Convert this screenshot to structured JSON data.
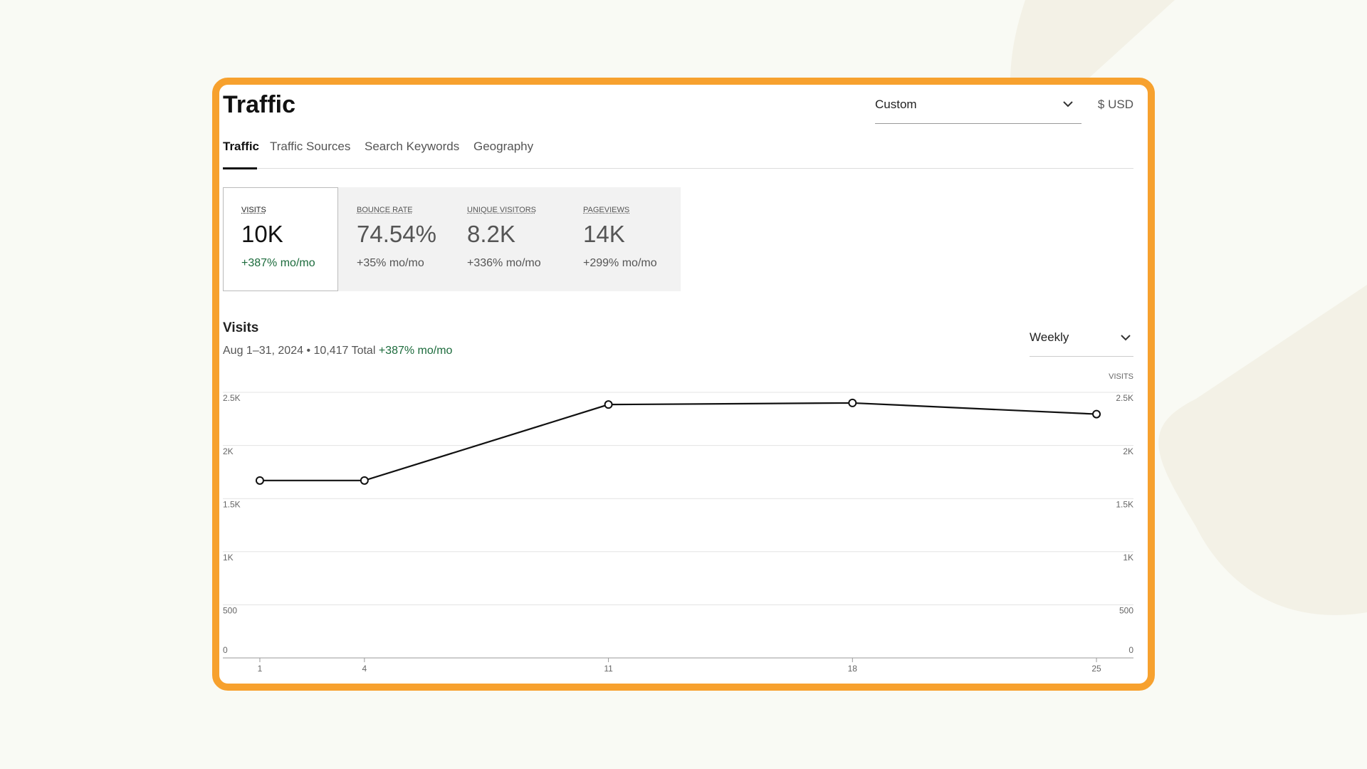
{
  "header": {
    "title": "Traffic",
    "date_range": "Custom",
    "currency": "$ USD"
  },
  "tabs": [
    "Traffic",
    "Traffic Sources",
    "Search Keywords",
    "Geography"
  ],
  "metrics": [
    {
      "label": "VISITS",
      "value": "10K",
      "change": "+387% mo/mo"
    },
    {
      "label": "BOUNCE RATE",
      "value": "74.54%",
      "change": "+35% mo/mo"
    },
    {
      "label": "UNIQUE VISITORS",
      "value": "8.2K",
      "change": "+336% mo/mo"
    },
    {
      "label": "PAGEVIEWS",
      "value": "14K",
      "change": "+299% mo/mo"
    }
  ],
  "chart_data": {
    "type": "line",
    "title": "Visits",
    "subtitle": "Aug 1–31, 2024 • 10,417 Total",
    "subtitle_change": "+387% mo/mo",
    "interval": "Weekly",
    "y_label": "VISITS",
    "x": [
      1,
      4,
      11,
      18,
      25
    ],
    "values": [
      1670,
      1670,
      2385,
      2400,
      2295
    ],
    "color": "#111111",
    "xlim": [
      0,
      26
    ],
    "xticks": [
      1,
      4,
      11,
      18,
      25
    ],
    "ylim": [
      0,
      2500
    ],
    "yticks": [
      0,
      500,
      {
        "value": 1000,
        "label": "1K"
      },
      {
        "value": 1500,
        "label": "1.5K"
      },
      {
        "value": 2000,
        "label": "2K"
      },
      {
        "value": 2500,
        "label": "2.5K"
      }
    ],
    "grid": true
  }
}
